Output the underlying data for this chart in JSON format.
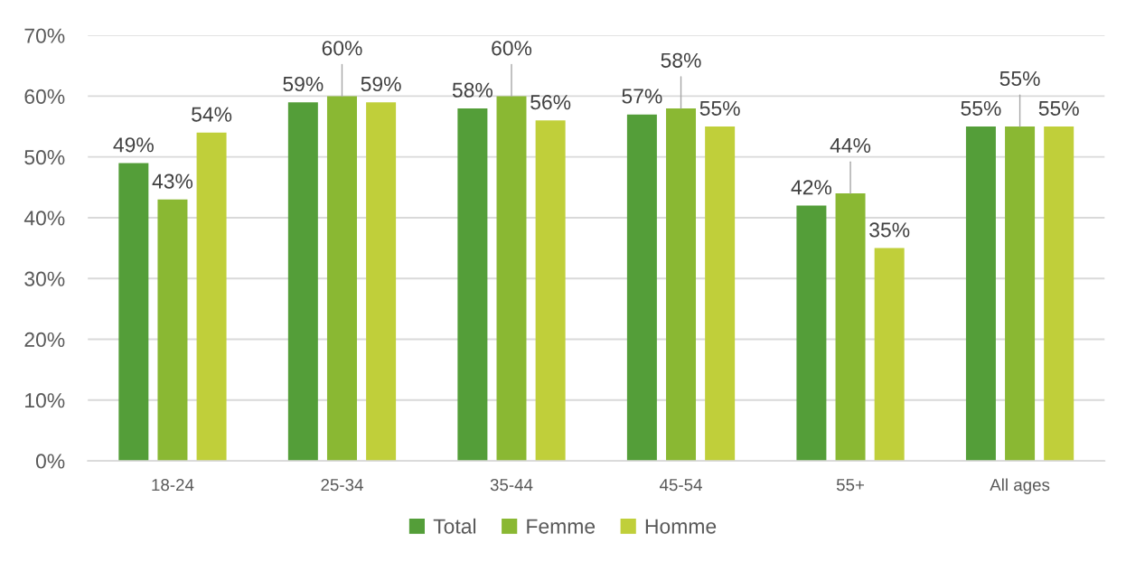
{
  "chart_data": {
    "type": "bar",
    "categories": [
      "18-24",
      "25-34",
      "35-44",
      "45-54",
      "55+",
      "All ages"
    ],
    "series": [
      {
        "name": "Total",
        "color": "#549e39",
        "values": [
          49,
          59,
          58,
          57,
          42,
          55
        ],
        "value_labels": [
          "49%",
          "59%",
          "58%",
          "57%",
          "42%",
          "55%"
        ]
      },
      {
        "name": "Femme",
        "color": "#8ab833",
        "values": [
          43,
          60,
          60,
          58,
          44,
          55
        ],
        "value_labels": [
          "43%",
          "60%",
          "60%",
          "58%",
          "44%",
          "55%"
        ]
      },
      {
        "name": "Homme",
        "color": "#c0cf3a",
        "values": [
          54,
          59,
          56,
          55,
          35,
          55
        ],
        "value_labels": [
          "54%",
          "59%",
          "56%",
          "55%",
          "35%",
          "55%"
        ]
      }
    ],
    "ylim": [
      0,
      70
    ],
    "yticks": [
      {
        "value": 0,
        "label": "0%"
      },
      {
        "value": 10,
        "label": "10%"
      },
      {
        "value": 20,
        "label": "20%"
      },
      {
        "value": 30,
        "label": "30%"
      },
      {
        "value": 40,
        "label": "40%"
      },
      {
        "value": 50,
        "label": "50%"
      },
      {
        "value": 60,
        "label": "60%"
      },
      {
        "value": 70,
        "label": "70%"
      }
    ],
    "grid": "y",
    "legend": "bottom"
  }
}
